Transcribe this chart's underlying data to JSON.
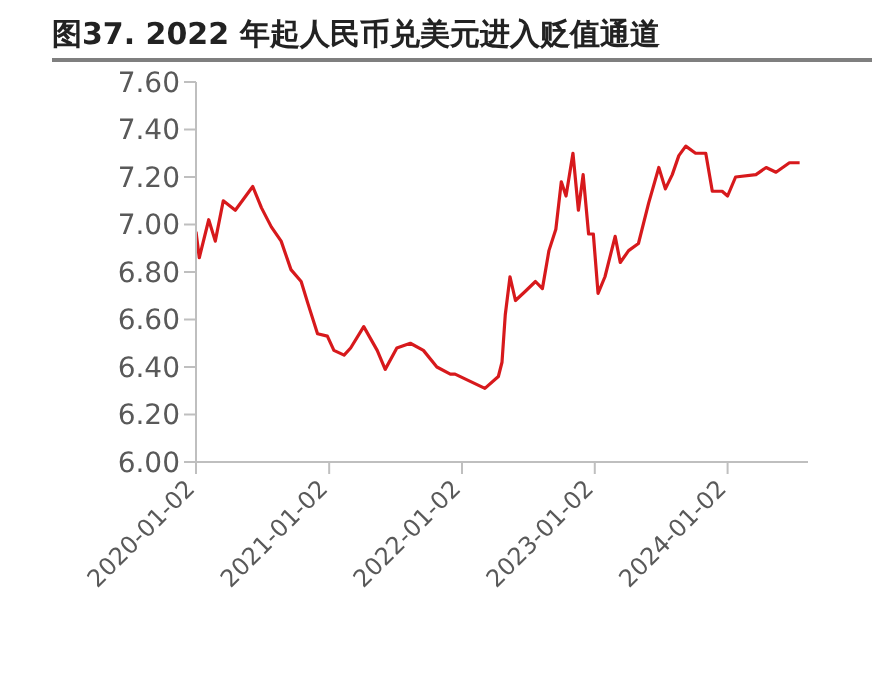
{
  "chart_data": {
    "type": "line",
    "title": "图37. 2022 年起人民币兑美元进入贬值通道",
    "x": [
      "2020-01-02",
      "2020-01-11",
      "2020-02-06",
      "2020-02-24",
      "2020-03-17",
      "2020-04-19",
      "2020-06-06",
      "2020-06-30",
      "2020-07-27",
      "2020-08-23",
      "2020-09-19",
      "2020-10-17",
      "2020-11-04",
      "2020-12-01",
      "2020-12-28",
      "2021-01-15",
      "2021-02-12",
      "2021-03-02",
      "2021-04-07",
      "2021-05-14",
      "2021-06-05",
      "2021-07-07",
      "2021-08-13",
      "2021-09-18",
      "2021-10-25",
      "2021-12-01",
      "2021-12-14",
      "2022-03-06",
      "2022-04-12",
      "2022-04-22",
      "2022-05-01",
      "2022-05-14",
      "2022-05-29",
      "2022-06-26",
      "2022-07-23",
      "2022-08-11",
      "2022-08-29",
      "2022-09-17",
      "2022-10-02",
      "2022-10-15",
      "2022-11-03",
      "2022-11-18",
      "2022-12-01",
      "2022-12-16",
      "2022-12-29",
      "2023-01-11",
      "2023-01-30",
      "2023-02-27",
      "2023-03-13",
      "2023-04-05",
      "2023-05-02",
      "2023-05-30",
      "2023-06-27",
      "2023-07-15",
      "2023-08-03",
      "2023-08-21",
      "2023-09-09",
      "2023-10-06",
      "2023-11-03",
      "2023-11-21",
      "2023-12-18",
      "2024-01-02",
      "2024-01-24",
      "2024-03-20",
      "2024-04-17",
      "2024-05-14",
      "2024-06-20",
      "2024-07-18"
    ],
    "series": [
      {
        "color": "#d7191c",
        "values": [
          6.97,
          6.86,
          7.02,
          6.93,
          7.1,
          7.06,
          7.16,
          7.07,
          6.99,
          6.93,
          6.81,
          6.76,
          6.67,
          6.54,
          6.53,
          6.47,
          6.45,
          6.48,
          6.57,
          6.47,
          6.39,
          6.48,
          6.5,
          6.47,
          6.4,
          6.37,
          6.37,
          6.31,
          6.36,
          6.42,
          6.62,
          6.78,
          6.68,
          6.72,
          6.76,
          6.73,
          6.89,
          6.98,
          7.18,
          7.12,
          7.3,
          7.06,
          7.21,
          6.96,
          6.96,
          6.71,
          6.78,
          6.95,
          6.84,
          6.89,
          6.92,
          7.09,
          7.24,
          7.15,
          7.21,
          7.29,
          7.33,
          7.3,
          7.3,
          7.14,
          7.14,
          7.12,
          7.2,
          7.21,
          7.24,
          7.22,
          7.26,
          7.26
        ]
      }
    ],
    "xlim": [
      "2020-01-02",
      "2024-08-10"
    ],
    "xticks": [
      "2020-01-02",
      "2021-01-02",
      "2022-01-02",
      "2023-01-02",
      "2024-01-02"
    ],
    "ylim": [
      6.0,
      7.6
    ],
    "yticks": [
      {
        "value": 6.0,
        "label": "6.00"
      },
      {
        "value": 6.2,
        "label": "6.20"
      },
      {
        "value": 6.4,
        "label": "6.40"
      },
      {
        "value": 6.6,
        "label": "6.60"
      },
      {
        "value": 6.8,
        "label": "6.80"
      },
      {
        "value": 7.0,
        "label": "7.00"
      },
      {
        "value": 7.2,
        "label": "7.20"
      },
      {
        "value": 7.4,
        "label": "7.40"
      },
      {
        "value": 7.6,
        "label": "7.60"
      }
    ]
  }
}
